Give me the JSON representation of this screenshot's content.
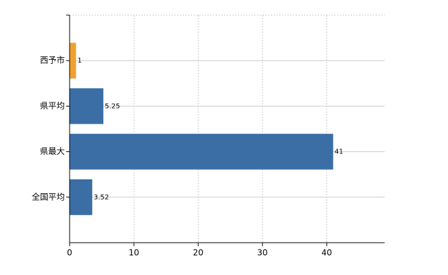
{
  "chart_data": {
    "type": "hbar",
    "categories": [
      "西予市",
      "県平均",
      "県最大",
      "全国平均"
    ],
    "values": [
      1,
      5.25,
      41,
      3.52
    ],
    "colors": [
      "#f0a030",
      "#3a6ea5",
      "#3a6ea5",
      "#3a6ea5"
    ],
    "xlim": [
      0,
      49
    ],
    "xticks": [
      0,
      10,
      20,
      30,
      40
    ],
    "grid": true
  }
}
